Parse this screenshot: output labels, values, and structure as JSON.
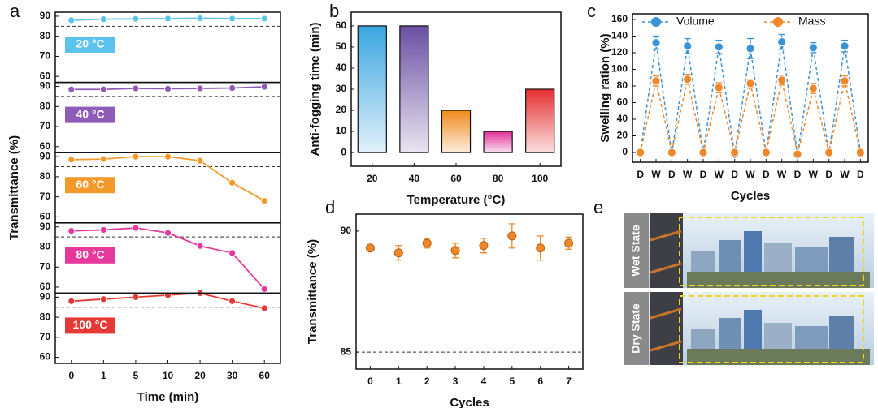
{
  "chart_data": [
    {
      "type": "line",
      "panel_label": "a",
      "facet": true,
      "xlabel": "Time (min)",
      "ylabel": "Transmittance (%)",
      "categories": [
        "0",
        "1",
        "5",
        "10",
        "20",
        "30",
        "60"
      ],
      "ylim": [
        57,
        92
      ],
      "yticks": [
        60,
        70,
        80,
        90
      ],
      "reference_line": 85,
      "series": [
        {
          "name": "20 °C",
          "color": "#5cc3ec",
          "values": [
            88,
            88.5,
            88.7,
            88.8,
            89,
            88.8,
            88.8
          ]
        },
        {
          "name": "40 °C",
          "color": "#8e5bb8",
          "values": [
            88.5,
            88.5,
            89,
            88.8,
            89,
            89.2,
            89.8
          ]
        },
        {
          "name": "60 °C",
          "color": "#f39a2b",
          "values": [
            88.5,
            88.8,
            90,
            90,
            88,
            77,
            68
          ]
        },
        {
          "name": "80 °C",
          "color": "#e6399b",
          "values": [
            88,
            88.5,
            89.5,
            87,
            80.5,
            77,
            59
          ]
        },
        {
          "name": "100 °C",
          "color": "#e53935",
          "values": [
            88,
            89,
            90,
            91,
            92,
            88,
            84.5
          ]
        }
      ]
    },
    {
      "type": "bar",
      "panel_label": "b",
      "xlabel": "Temperature (°C)",
      "ylabel": "Anti-fogging time (min)",
      "categories": [
        "20",
        "40",
        "60",
        "80",
        "100"
      ],
      "values": [
        60,
        60,
        20,
        10,
        30
      ],
      "colors": [
        "#3aa5e0",
        "#6a4fa3",
        "#f08a1c",
        "#e0309a",
        "#e53030"
      ],
      "ylim": [
        -6.5,
        66.5
      ],
      "yticks": [
        0,
        10,
        20,
        30,
        40,
        50,
        60
      ]
    },
    {
      "type": "line",
      "panel_label": "c",
      "xlabel": "Cycles",
      "ylabel": "Swelling ration (%)",
      "categories": [
        "D",
        "W",
        "D",
        "W",
        "D",
        "W",
        "D",
        "W",
        "D",
        "W",
        "D",
        "W",
        "D",
        "W",
        "D"
      ],
      "ylim": [
        -11.7,
        166.8
      ],
      "yticks": [
        0,
        20,
        40,
        60,
        80,
        100,
        120,
        140,
        160
      ],
      "legend": "top",
      "series": [
        {
          "name": "Volume",
          "color": "#3b93d6",
          "values": [
            0,
            132,
            -1,
            128,
            0,
            127,
            -2,
            125,
            -1,
            133,
            -3,
            126,
            -1,
            128,
            1
          ],
          "errors": [
            2,
            8,
            2,
            9,
            2,
            8,
            2,
            12,
            2,
            9,
            2,
            6,
            2,
            7,
            3
          ]
        },
        {
          "name": "Mass",
          "color": "#f0882a",
          "values": [
            0,
            86,
            0,
            88,
            0,
            78,
            0,
            83,
            0,
            87,
            -2,
            77,
            0,
            86,
            0
          ],
          "errors": [
            2,
            6,
            2,
            6,
            2,
            6,
            2,
            5,
            2,
            6,
            2,
            6,
            2,
            6,
            2
          ]
        }
      ]
    },
    {
      "type": "scatter",
      "panel_label": "d",
      "xlabel": "Cycles",
      "ylabel": "Transmittance (%)",
      "x": [
        0,
        1,
        2,
        3,
        4,
        5,
        6,
        7
      ],
      "values": [
        89.3,
        89.1,
        89.5,
        89.2,
        89.4,
        89.8,
        89.3,
        89.5
      ],
      "errors": [
        0.1,
        0.3,
        0.2,
        0.3,
        0.3,
        0.5,
        0.5,
        0.25
      ],
      "color": "#f0882a",
      "xlim": [
        -0.5,
        7.5
      ],
      "xticks": [
        0,
        1,
        2,
        3,
        4,
        5,
        6,
        7
      ],
      "ylim": [
        84.3,
        90.7
      ],
      "yticks": [
        85,
        90
      ],
      "reference_line": 85
    }
  ],
  "panel_e": {
    "label": "e",
    "photos": [
      {
        "label": "Wet State"
      },
      {
        "label": "Dry State"
      }
    ]
  }
}
